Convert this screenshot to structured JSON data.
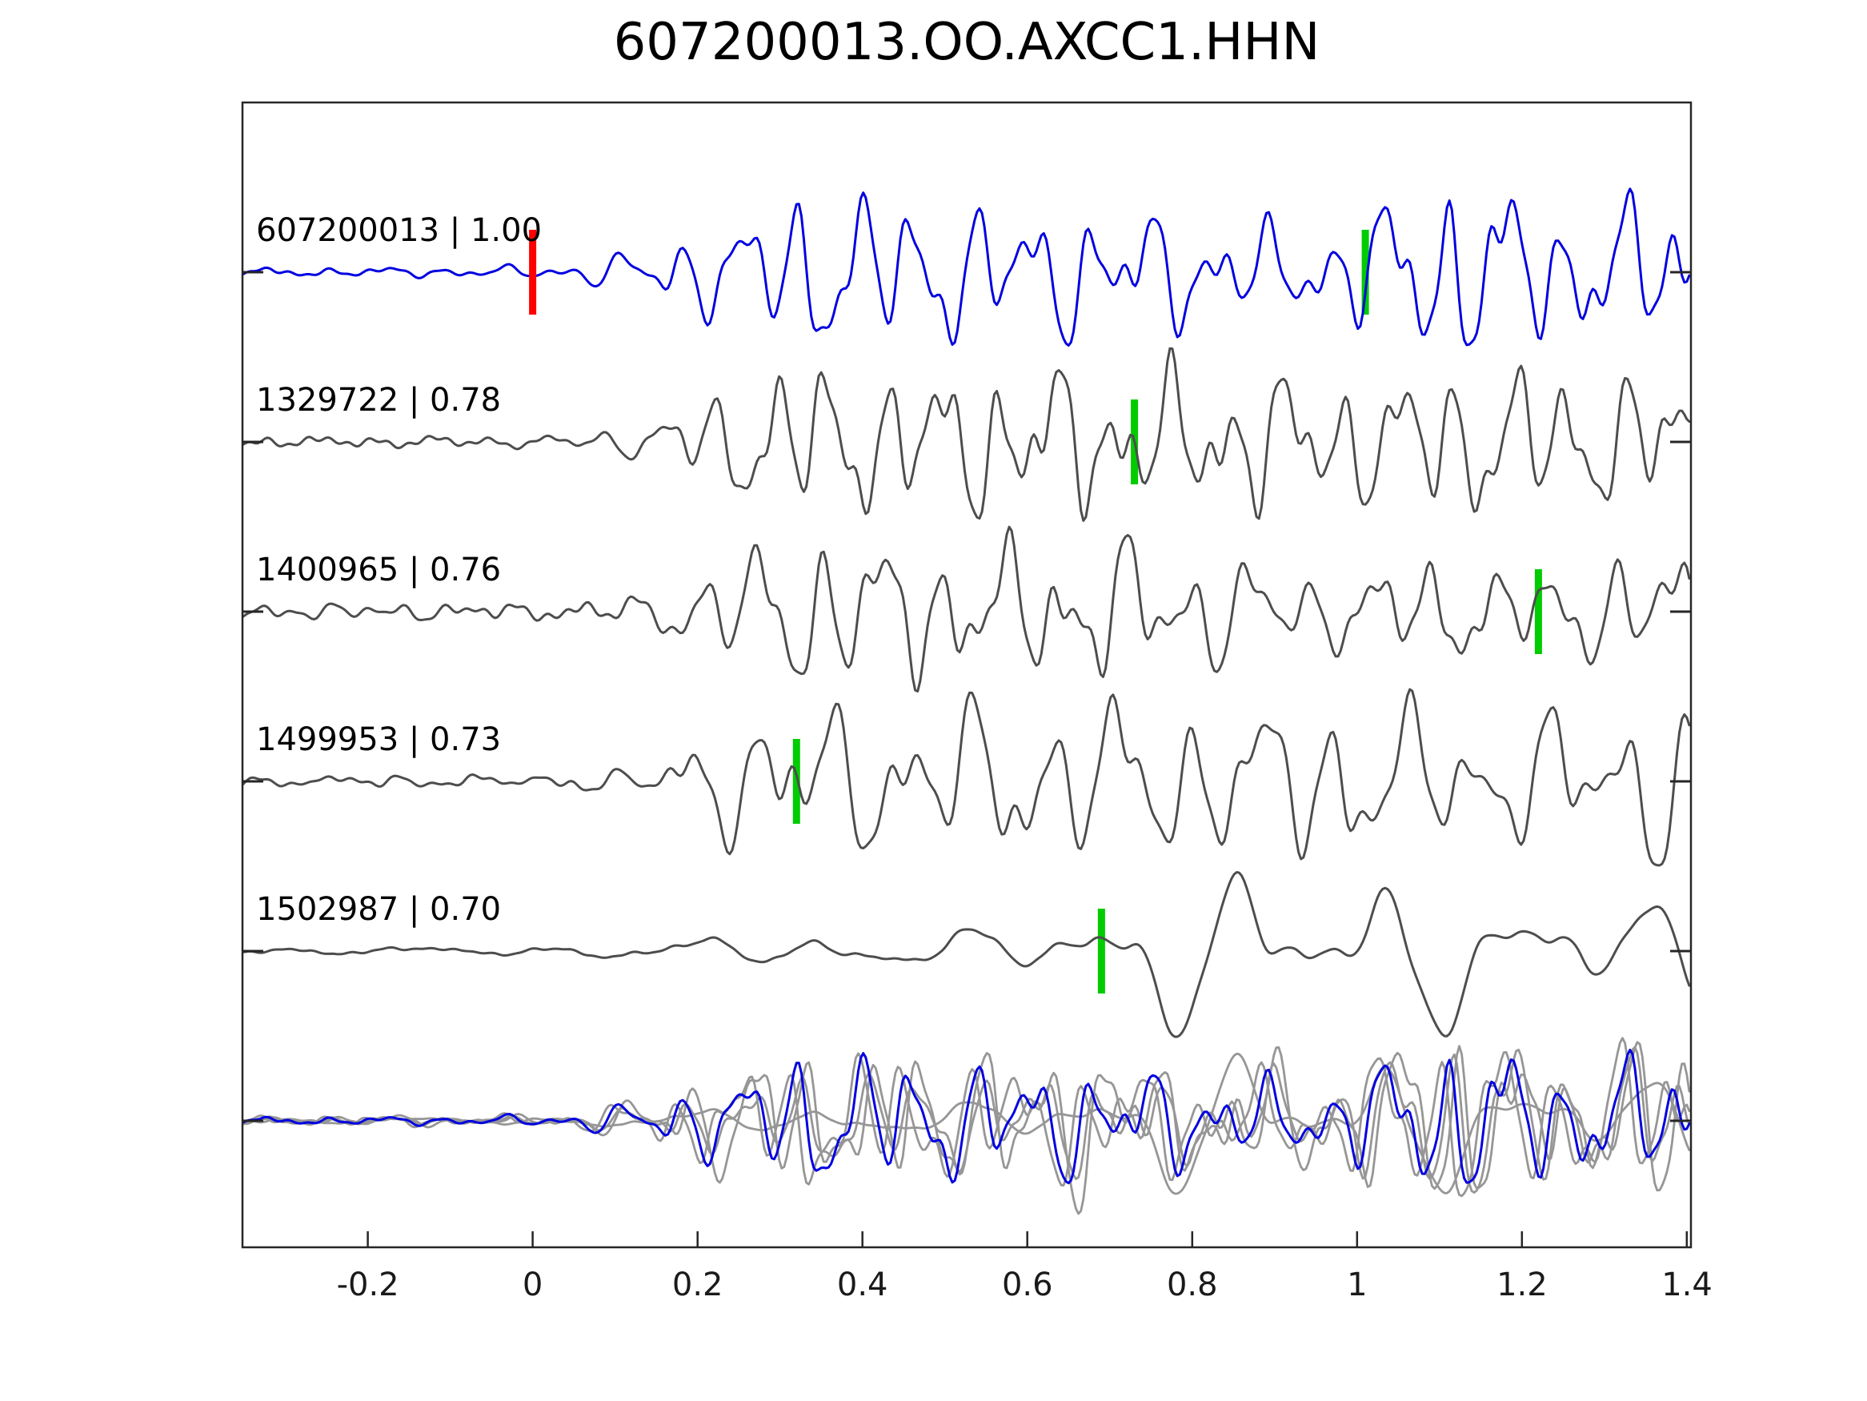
{
  "title": "607200013.OO.AXCC1.HHN",
  "chart_data": {
    "type": "line",
    "subtype": "seismic-waveform-template-correlation",
    "title": "607200013.OO.AXCC1.HHN",
    "x_axis": {
      "min": -0.35,
      "max": 1.41,
      "grid": false,
      "ticks": [
        {
          "value": -0.2,
          "label": "-0.2"
        },
        {
          "value": 0,
          "label": "0"
        },
        {
          "value": 0.2,
          "label": "0.2"
        },
        {
          "value": 0.4,
          "label": "0.4"
        },
        {
          "value": 0.6,
          "label": "0.6"
        },
        {
          "value": 0.8,
          "label": "0.8"
        },
        {
          "value": 1,
          "label": "1"
        },
        {
          "value": 1.2,
          "label": "1.2"
        },
        {
          "value": 1.4,
          "label": "1.4"
        }
      ]
    },
    "colors": {
      "template_trace": "#0000e0",
      "detection_trace": "#4d4d4d",
      "overlay_gray": "#969696",
      "pick_marker": "#00cc00",
      "template_marker": "#ff0000",
      "axis": "#262626"
    },
    "template_marker": {
      "trace_id": "607200013",
      "time": 0.0,
      "color": "#ff0000"
    },
    "traces": [
      {
        "id": "607200013",
        "correlation": 1.0,
        "label": "607200013 | 1.00",
        "role": "template",
        "color": "#0000e0",
        "pick_time": 1.01,
        "seed": 3,
        "freq": 14.0,
        "noise": 1.0,
        "overlay_scale": 0.85,
        "overlay_shift": 0,
        "env": [
          [
            -0.35,
            5
          ],
          [
            -0.1,
            7
          ],
          [
            0.02,
            9
          ],
          [
            0.1,
            25
          ],
          [
            0.18,
            55
          ],
          [
            0.26,
            80
          ],
          [
            0.33,
            120
          ],
          [
            0.42,
            110
          ],
          [
            0.55,
            95
          ],
          [
            0.7,
            90
          ],
          [
            0.85,
            70
          ],
          [
            0.95,
            55
          ],
          [
            1.05,
            105
          ],
          [
            1.13,
            140
          ],
          [
            1.25,
            90
          ],
          [
            1.35,
            100
          ],
          [
            1.41,
            110
          ]
        ]
      },
      {
        "id": "1329722",
        "correlation": 0.78,
        "label": "1329722 | 0.78",
        "role": "detection",
        "color": "#4d4d4d",
        "pick_time": 0.73,
        "seed": 7,
        "freq": 14.5,
        "noise": 1.2,
        "overlay_scale": 1.0,
        "overlay_shift": 0.006,
        "env": [
          [
            -0.35,
            6
          ],
          [
            0,
            9
          ],
          [
            0.1,
            20
          ],
          [
            0.2,
            60
          ],
          [
            0.3,
            115
          ],
          [
            0.45,
            100
          ],
          [
            0.6,
            110
          ],
          [
            0.72,
            95
          ],
          [
            0.85,
            100
          ],
          [
            1.0,
            90
          ],
          [
            1.15,
            110
          ],
          [
            1.3,
            95
          ],
          [
            1.41,
            105
          ]
        ]
      },
      {
        "id": "1400965",
        "correlation": 0.76,
        "label": "1400965 | 0.76",
        "role": "detection",
        "color": "#4d4d4d",
        "pick_time": 1.22,
        "seed": 11,
        "freq": 13.5,
        "noise": 1.6,
        "overlay_scale": 1.15,
        "overlay_shift": -0.008,
        "env": [
          [
            -0.35,
            7
          ],
          [
            0,
            10
          ],
          [
            0.12,
            22
          ],
          [
            0.22,
            70
          ],
          [
            0.32,
            120
          ],
          [
            0.45,
            100
          ],
          [
            0.55,
            90
          ],
          [
            0.7,
            100
          ],
          [
            0.85,
            80
          ],
          [
            0.95,
            55
          ],
          [
            1.1,
            75
          ],
          [
            1.22,
            55
          ],
          [
            1.32,
            80
          ],
          [
            1.41,
            95
          ]
        ]
      },
      {
        "id": "1499953",
        "correlation": 0.73,
        "label": "1499953 | 0.73",
        "role": "detection",
        "color": "#4d4d4d",
        "pick_time": 0.32,
        "seed": 19,
        "freq": 11.5,
        "noise": 1.0,
        "overlay_scale": 1.3,
        "overlay_shift": 0.012,
        "env": [
          [
            -0.35,
            6
          ],
          [
            0,
            8
          ],
          [
            0.1,
            15
          ],
          [
            0.2,
            60
          ],
          [
            0.3,
            120
          ],
          [
            0.42,
            100
          ],
          [
            0.55,
            110
          ],
          [
            0.7,
            115
          ],
          [
            0.85,
            105
          ],
          [
            1.0,
            120
          ],
          [
            1.15,
            80
          ],
          [
            1.3,
            110
          ],
          [
            1.41,
            120
          ]
        ]
      },
      {
        "id": "1502987",
        "correlation": 0.7,
        "label": "1502987 | 0.70",
        "role": "detection",
        "color": "#4d4d4d",
        "pick_time": 0.69,
        "seed": 23,
        "freq": 6.0,
        "noise": 0.4,
        "overlay_scale": 0.85,
        "overlay_shift": 0,
        "env": [
          [
            -0.35,
            4
          ],
          [
            0,
            6
          ],
          [
            0.15,
            14
          ],
          [
            0.3,
            22
          ],
          [
            0.45,
            20
          ],
          [
            0.6,
            35
          ],
          [
            0.72,
            80
          ],
          [
            0.82,
            115
          ],
          [
            0.95,
            90
          ],
          [
            1.05,
            110
          ],
          [
            1.2,
            70
          ],
          [
            1.32,
            60
          ],
          [
            1.41,
            75
          ]
        ]
      }
    ],
    "overlay": {
      "description": "all detection traces (gray) superimposed with template (blue), bottom row",
      "blue_trace_id": "607200013"
    }
  }
}
